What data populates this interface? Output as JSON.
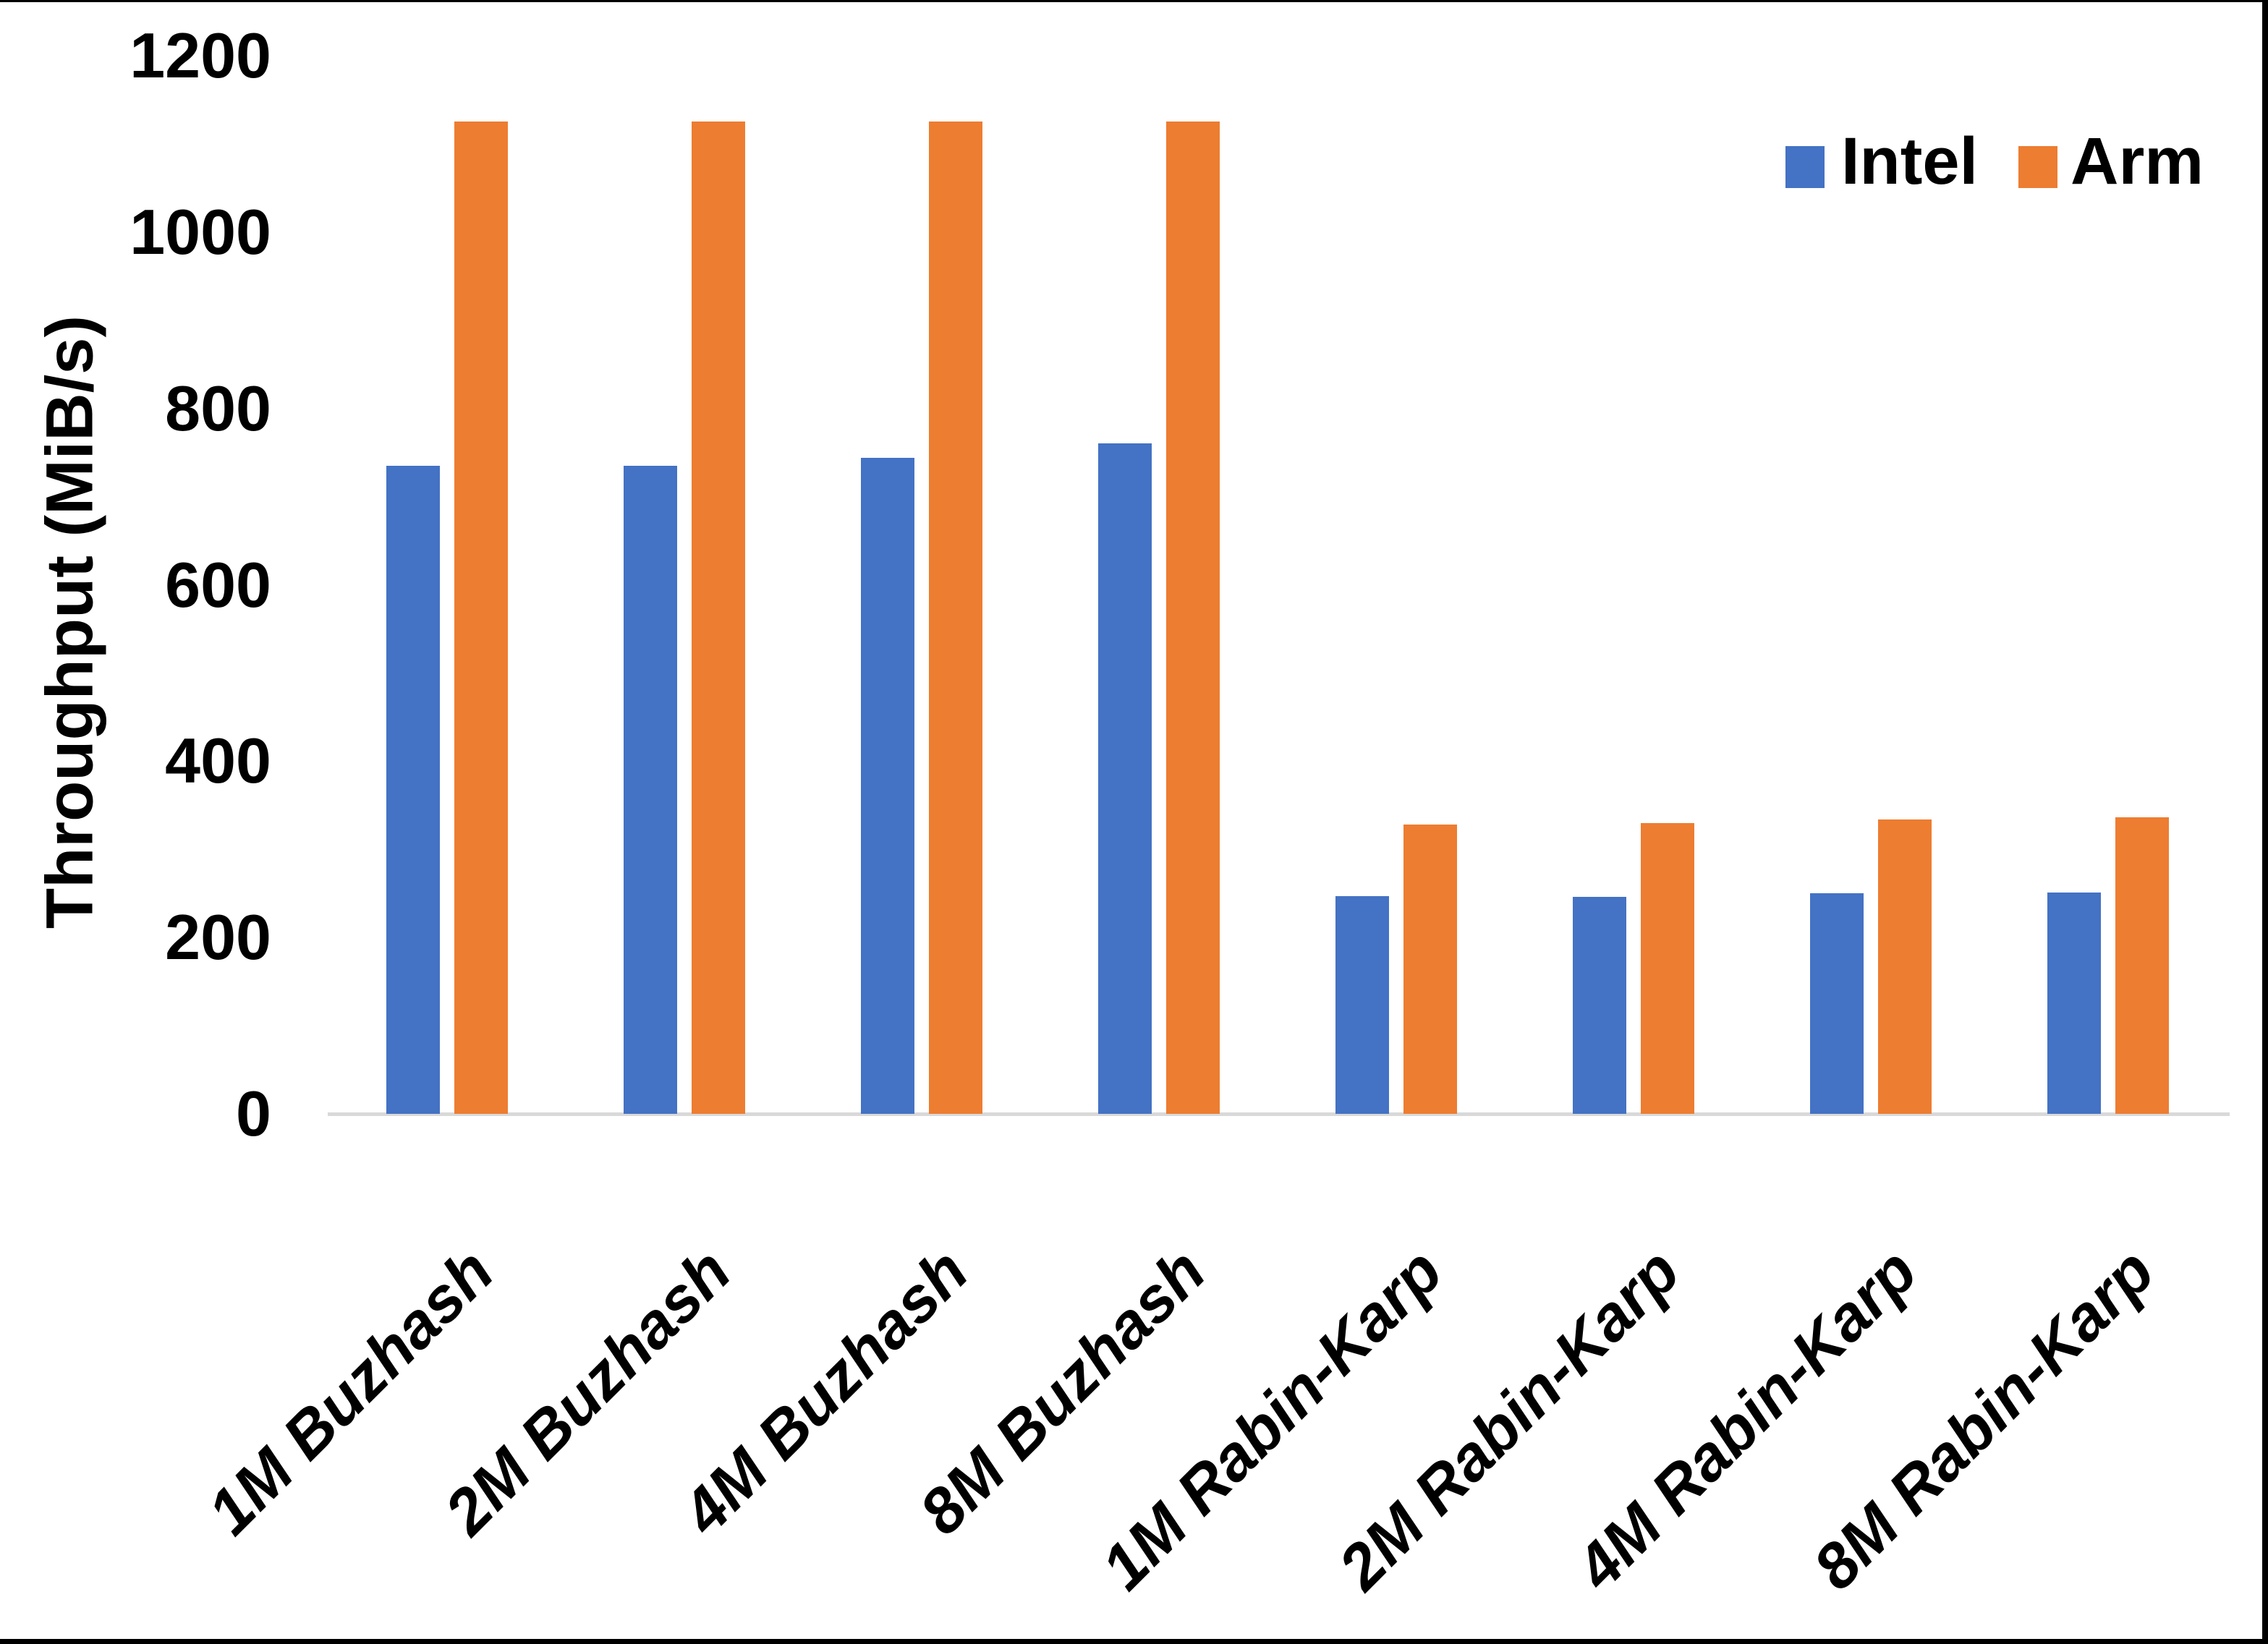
{
  "chart_data": {
    "type": "bar",
    "title": "",
    "xlabel": "",
    "ylabel": "Throughput (MiB/s)",
    "ylim": [
      0,
      1200
    ],
    "yticks": [
      0,
      200,
      400,
      600,
      800,
      1000,
      1200
    ],
    "grid": false,
    "legend_position": "top-right",
    "categories": [
      "1M Buzhash",
      "2M Buzhash",
      "4M Buzhash",
      "8M Buzhash",
      "1M Rabin-Karp",
      "2M Rabin-Karp",
      "4M Rabin-Karp",
      "8M Rabin-Karp"
    ],
    "series": [
      {
        "name": "Intel",
        "color": "#4472C4",
        "values": [
          735,
          735,
          744,
          760,
          247,
          246,
          250,
          251
        ]
      },
      {
        "name": "Arm",
        "color": "#ED7D31",
        "values": [
          1125,
          1125,
          1125,
          1125,
          328,
          330,
          334,
          336
        ]
      }
    ]
  },
  "colors": {
    "axis_line": "#D9D9D9",
    "text": "#000000",
    "screen_border": "#000000"
  }
}
